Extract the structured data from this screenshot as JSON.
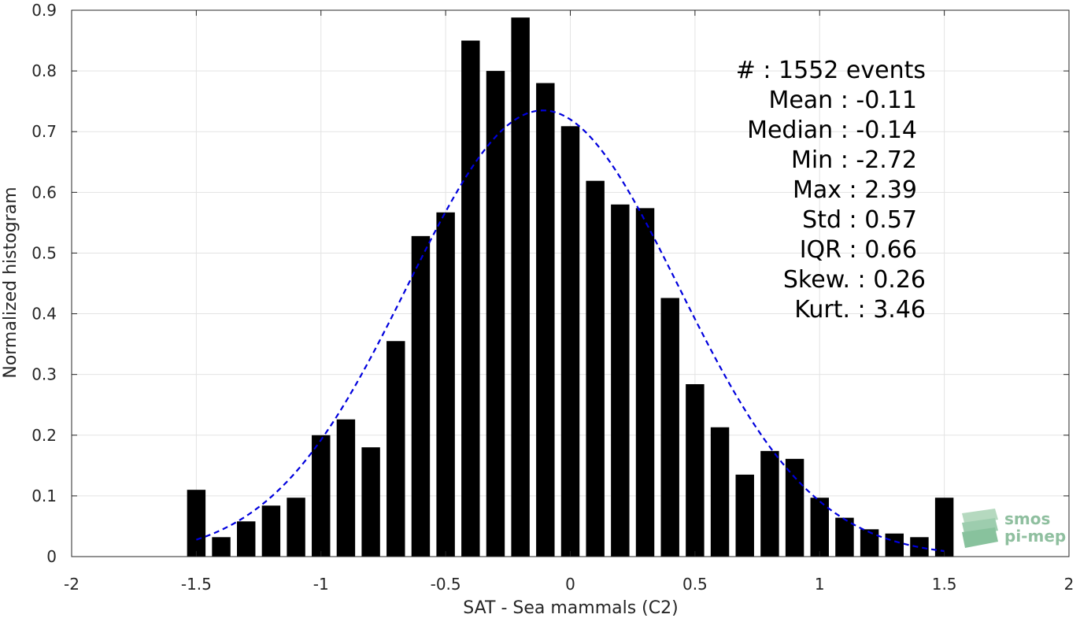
{
  "chart_data": {
    "type": "bar",
    "xlabel": "SAT - Sea mammals (C2)",
    "ylabel": "Normalized histogram",
    "xlim": [
      -2,
      2
    ],
    "ylim": [
      0,
      0.9
    ],
    "xticks": [
      -2,
      -1.5,
      -1,
      -0.5,
      0,
      0.5,
      1,
      1.5,
      2
    ],
    "xtick_labels": [
      "-2",
      "-1.5",
      "-1",
      "-0.5",
      "0",
      "0.5",
      "1",
      "1.5",
      "2"
    ],
    "yticks": [
      0,
      0.1,
      0.2,
      0.3,
      0.4,
      0.5,
      0.6,
      0.7,
      0.8,
      0.9
    ],
    "ytick_labels": [
      "0",
      "0.1",
      "0.2",
      "0.3",
      "0.4",
      "0.5",
      "0.6",
      "0.7",
      "0.8",
      "0.9"
    ],
    "grid": true,
    "bar_color": "#000000",
    "bins": [
      -1.5,
      -1.4,
      -1.3,
      -1.2,
      -1.1,
      -1.0,
      -0.9,
      -0.8,
      -0.7,
      -0.6,
      -0.5,
      -0.4,
      -0.3,
      -0.2,
      -0.1,
      0.0,
      0.1,
      0.2,
      0.3,
      0.4,
      0.5,
      0.6,
      0.7,
      0.8,
      0.9,
      1.0,
      1.1,
      1.2,
      1.3,
      1.4,
      1.5
    ],
    "values": [
      0.11,
      0.032,
      0.058,
      0.084,
      0.097,
      0.2,
      0.226,
      0.18,
      0.355,
      0.528,
      0.567,
      0.85,
      0.8,
      0.888,
      0.78,
      0.709,
      0.619,
      0.58,
      0.574,
      0.426,
      0.284,
      0.213,
      0.135,
      0.174,
      0.161,
      0.097,
      0.064,
      0.045,
      0.038,
      0.032,
      0.097
    ],
    "fit_curve": {
      "style": "dashed",
      "color": "#0000dd",
      "mean": -0.11,
      "std": 0.5433,
      "peak": 0.735,
      "x_range": [
        -1.5,
        1.5
      ]
    },
    "stats_lines": [
      "#  : 1552 events",
      "Mean : -0.11",
      "Median : -0.14",
      "Min : -2.72",
      "Max : 2.39",
      "Std : 0.57",
      "IQR : 0.66",
      "Skew. : 0.26",
      "Kurt. : 3.46"
    ]
  },
  "logo": {
    "line1": "smos",
    "line2": "pi-mep"
  }
}
